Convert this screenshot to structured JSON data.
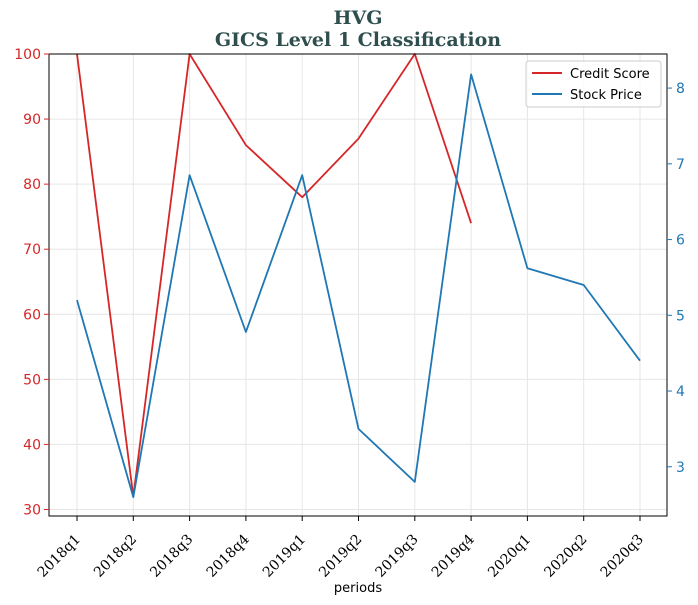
{
  "chart_data": {
    "type": "line",
    "title": "HVG",
    "subtitle": "GICS Level 1 Classification",
    "xlabel": "periods",
    "categories": [
      "2018q1",
      "2018q2",
      "2018q3",
      "2018q4",
      "2019q1",
      "2019q2",
      "2019q3",
      "2019q4",
      "2020q1",
      "2020q2",
      "2020q3"
    ],
    "y_left": {
      "ticks": [
        30,
        40,
        50,
        60,
        70,
        80,
        90,
        100
      ],
      "range": [
        29,
        100
      ]
    },
    "y_right": {
      "ticks": [
        3,
        4,
        5,
        6,
        7,
        8
      ],
      "range": [
        2.35,
        8.45
      ]
    },
    "series": [
      {
        "name": "Credit Score",
        "axis": "left",
        "color": "#d62728",
        "values": [
          100,
          32,
          100,
          86,
          78,
          87,
          100,
          74,
          null,
          null,
          null
        ]
      },
      {
        "name": "Stock Price",
        "axis": "right",
        "color": "#1f77b4",
        "values": [
          5.2,
          2.6,
          6.85,
          4.78,
          6.85,
          3.5,
          2.8,
          8.18,
          5.62,
          5.4,
          4.4
        ]
      }
    ],
    "grid": true,
    "legend_position": "top-right",
    "left_axis_color": "#d62728",
    "right_axis_color": "#1f77b4"
  }
}
